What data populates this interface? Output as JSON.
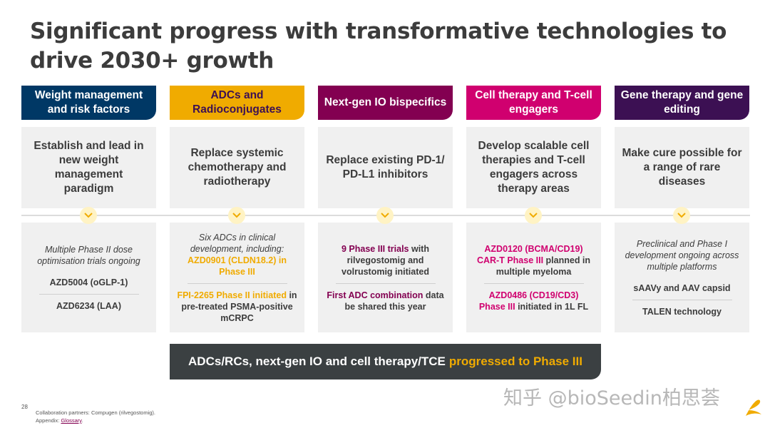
{
  "title": "Significant progress with transformative technologies to drive 2030+ growth",
  "colors": {
    "navy": "#003865",
    "gold": "#f0ab00",
    "plum": "#830051",
    "magenta": "#d0006f",
    "dark_purple": "#3c1053",
    "banner": "#3b4042"
  },
  "columns": [
    {
      "header": "Weight management and risk factors",
      "goal": "Establish and lead in new weight management paradigm"
    },
    {
      "header": "ADCs and Radioconjugates",
      "goal": "Replace systemic chemotherapy and radiotherapy"
    },
    {
      "header": "Next-gen IO bispecifics",
      "goal": "Replace existing PD-1/ PD-L1 inhibitors"
    },
    {
      "header": "Cell therapy and T-cell engagers",
      "goal": "Develop scalable cell therapies and T-cell engagers across therapy areas"
    },
    {
      "header": "Gene therapy and gene editing",
      "goal": "Make cure possible for a range of rare diseases"
    }
  ],
  "details": {
    "c1": {
      "line1": "Multiple Phase II dose optimisation trials ongoing",
      "line2": "AZD5004 (oGLP-1)",
      "line3": "AZD6234 (LAA)"
    },
    "c2": {
      "intro": "Six ADCs in clinical development, including:",
      "hl1": "AZD0901 (CLDN18.2) in Phase III",
      "hl2": "FPI-2265 Phase II initiated",
      "rest2": "in pre-treated PSMA-positive mCRPC"
    },
    "c3": {
      "hl1": "9 Phase III trials",
      "rest1": "with rilvegostomig and volrustomig initiated",
      "hl2": "First ADC combination",
      "rest2": "data be shared this year"
    },
    "c4": {
      "hl1a": "AZD0120 (BCMA/CD19)",
      "hl1b": "CAR-T Phase III",
      "rest1": "planned in multiple myeloma",
      "hl2a": "AZD0486 (CD19/CD3)",
      "hl2b": "Phase III",
      "rest2": "initiated in 1L FL"
    },
    "c5": {
      "line1": "Preclinical and Phase I development ongoing across multiple platforms",
      "line2": "sAAVy and AAV capsid",
      "line3": "TALEN technology"
    }
  },
  "banner": {
    "text": "ADCs/RCs, next-gen IO and cell therapy/TCE",
    "highlight": "progressed to Phase III"
  },
  "footer": {
    "page_number": "28",
    "note1": "Collaboration partners: Compugen (rilvegostomig).",
    "note2_prefix": "Appendix:",
    "note2_link": "Glossary",
    "note2_suffix": "."
  },
  "watermark": "知乎 @bioSeedin柏思荟",
  "icons": {
    "timeline": "chevron-down-icon",
    "logo": "astrazeneca-logo"
  }
}
